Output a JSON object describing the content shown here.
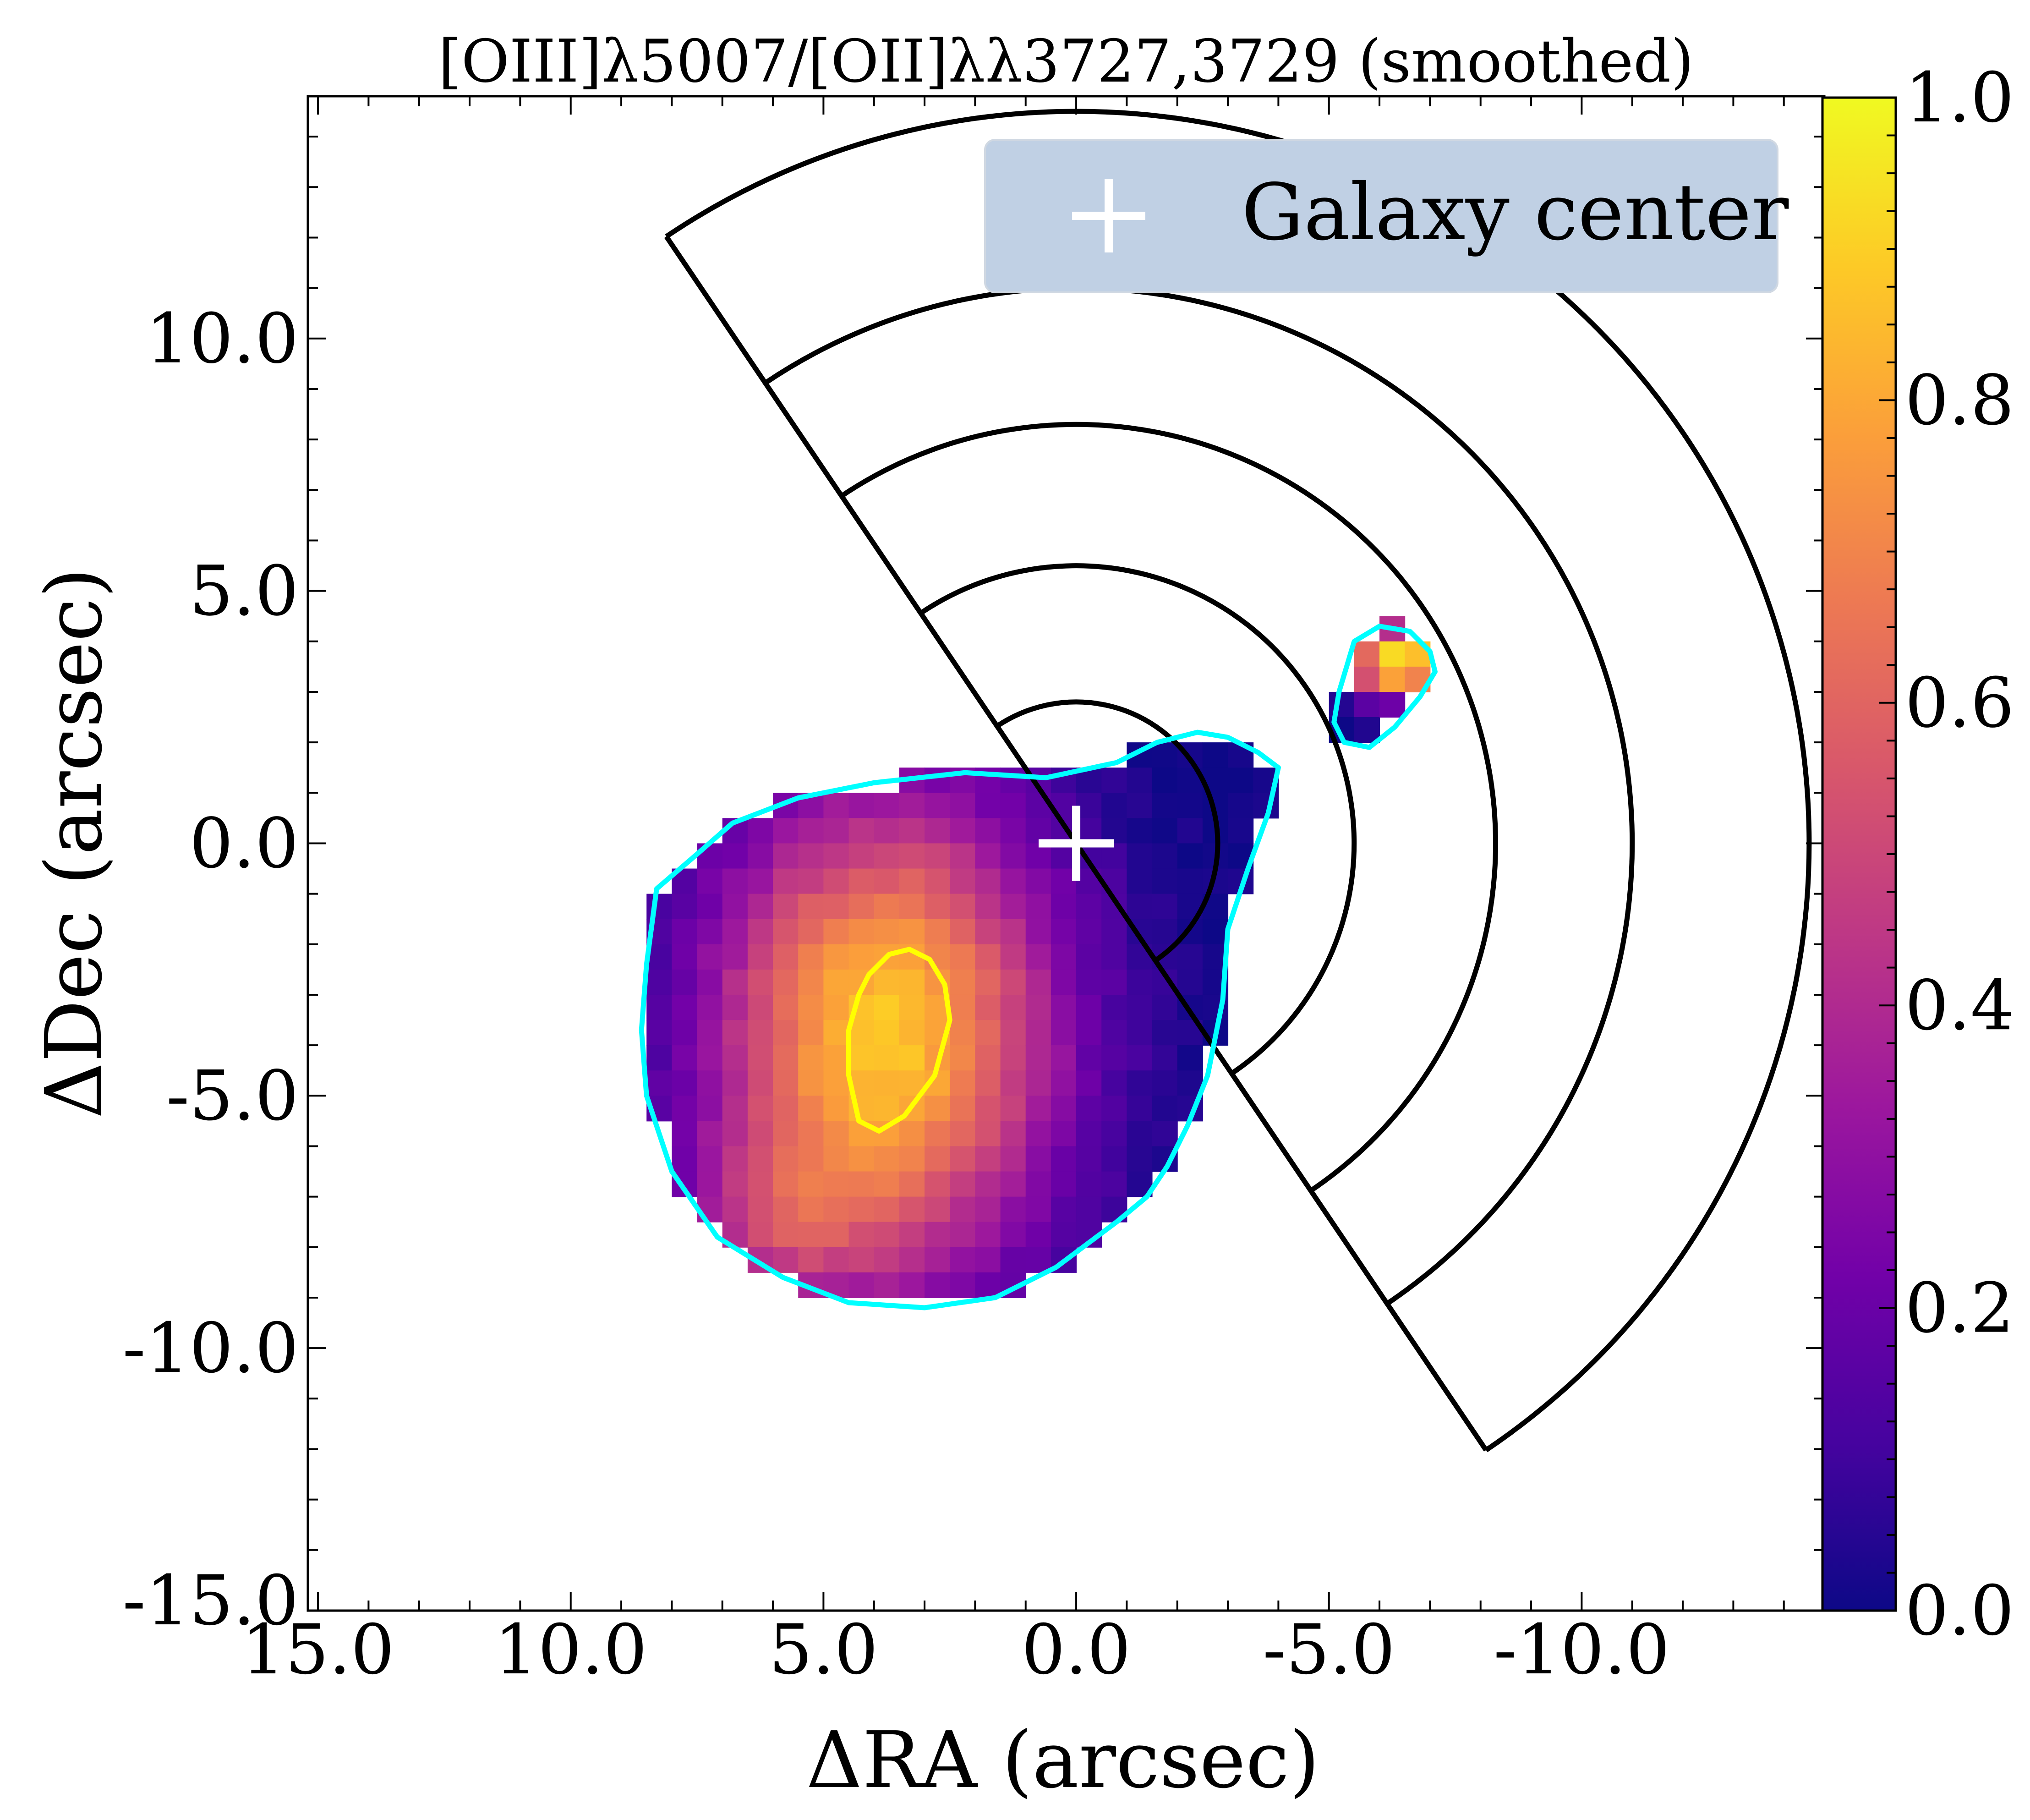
{
  "chart_data": {
    "type": "heatmap",
    "title": "[OIII]λ5007/[OII]λλ3727,3729 (smoothed)",
    "xlabel": "ΔRA (arcsec)",
    "ylabel": "ΔDec (arcsec)",
    "xlim": [
      15.2,
      -14.8
    ],
    "ylim": [
      -15.2,
      14.8
    ],
    "x_inverted": true,
    "xticks": [
      15.0,
      10.0,
      5.0,
      0.0,
      -5.0,
      -10.0
    ],
    "xtick_labels": [
      "15.0",
      "10.0",
      "5.0",
      "0.0",
      "-5.0",
      "-10.0"
    ],
    "yticks": [
      10.0,
      5.0,
      0.0,
      -5.0,
      -10.0,
      -15.0
    ],
    "ytick_labels": [
      "10.0",
      "5.0",
      "0.0",
      "-5.0",
      "-10.0",
      "-15.0"
    ],
    "colorbar": {
      "colormap": "plasma",
      "range": [
        0.0,
        1.0
      ],
      "ticks": [
        0.0,
        0.2,
        0.4,
        0.6,
        0.8,
        1.0
      ],
      "tick_labels": [
        "0.0",
        "0.2",
        "0.4",
        "0.6",
        "0.8",
        "1.0"
      ],
      "stops": [
        "#0d0887",
        "#46039f",
        "#7201a8",
        "#9c179e",
        "#bd3786",
        "#d8576b",
        "#ed7953",
        "#fb9f3a",
        "#fdca26",
        "#f0f921"
      ]
    },
    "legend": {
      "location": "upper right",
      "entries": [
        {
          "label": "Galaxy center",
          "marker": "+",
          "color": "#ffffff"
        }
      ],
      "background": "#c0d0e4"
    },
    "galaxy_center": {
      "ra": 0.0,
      "dec": 0.0
    },
    "heatmap": {
      "pixel_size": 0.5,
      "blobs": [
        {
          "ra": 3.8,
          "dec": -3.8,
          "sigma_ra": 2.4,
          "sigma_dec": 3.4,
          "amp": 0.88
        },
        {
          "ra": 6.0,
          "dec": -7.6,
          "sigma_ra": 1.4,
          "sigma_dec": 1.2,
          "amp": 0.25
        },
        {
          "ra": -6.4,
          "dec": 3.6,
          "sigma_ra": 0.7,
          "sigma_dec": 0.5,
          "amp": 1.0
        }
      ],
      "cyan_region_ra": [
        8.3,
        7.6,
        6.8,
        5.5,
        4.0,
        2.2,
        0.6,
        -0.8,
        -1.6,
        -2.4,
        -3.0,
        -3.6,
        -4.0,
        -3.8,
        -3.4,
        -3.0,
        -2.9,
        -2.6,
        -2.2,
        -1.8,
        -1.4,
        -0.8,
        0.4,
        1.6,
        3.0,
        4.5,
        5.8,
        7.1,
        8.0,
        8.5,
        8.6,
        8.5,
        8.3
      ],
      "cyan_region_dec": [
        -0.9,
        -0.3,
        0.4,
        0.9,
        1.2,
        1.4,
        1.3,
        1.6,
        2.0,
        2.2,
        2.1,
        1.8,
        1.5,
        0.6,
        -0.5,
        -1.7,
        -3.1,
        -4.6,
        -5.6,
        -6.4,
        -7.0,
        -7.5,
        -8.4,
        -9.0,
        -9.2,
        -9.1,
        -8.6,
        -7.8,
        -6.5,
        -5.0,
        -3.7,
        -2.4,
        -0.9
      ],
      "cyan_small_ra": [
        -5.5,
        -6.0,
        -6.6,
        -7.0,
        -7.1,
        -6.8,
        -6.3,
        -5.8,
        -5.3,
        -5.1,
        -5.2,
        -5.5
      ],
      "cyan_small_dec": [
        4.0,
        4.3,
        4.2,
        3.8,
        3.4,
        2.9,
        2.3,
        1.9,
        2.0,
        2.4,
        3.0,
        4.0
      ],
      "yellow_contour_ra": [
        4.1,
        3.7,
        3.3,
        2.9,
        2.6,
        2.5,
        2.8,
        3.4,
        3.9,
        4.3,
        4.5,
        4.5,
        4.3,
        4.1
      ],
      "yellow_contour_dec": [
        -2.6,
        -2.2,
        -2.1,
        -2.3,
        -2.8,
        -3.5,
        -4.6,
        -5.4,
        -5.7,
        -5.5,
        -4.6,
        -3.7,
        -3.0,
        -2.6
      ]
    },
    "annular_sectors": {
      "center": {
        "ra": 0.0,
        "dec": 0.0
      },
      "pa_start_deg": -124,
      "pa_end_deg": 56,
      "radii": [
        2.8,
        5.5,
        8.3,
        11.0,
        14.5
      ],
      "color": "#000000"
    },
    "contour_colors": {
      "outer": "#00ffff",
      "inner": "#ffff00"
    }
  }
}
